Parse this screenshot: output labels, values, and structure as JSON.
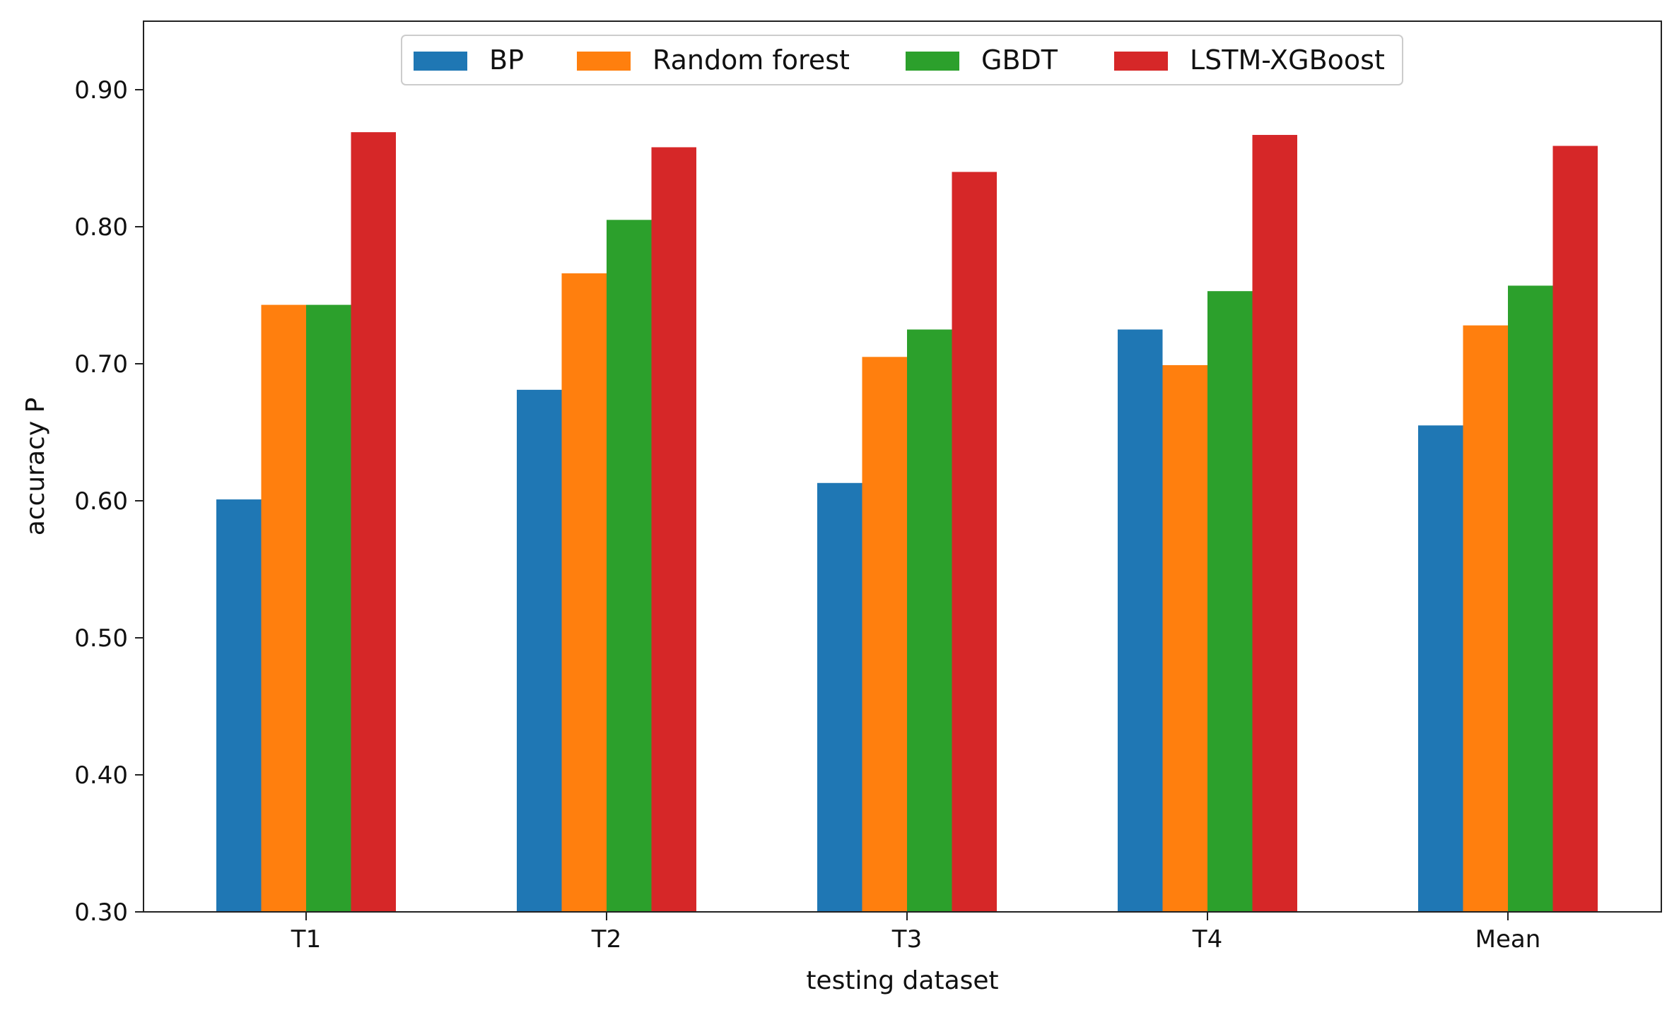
{
  "chart_data": {
    "type": "bar",
    "title": "",
    "xlabel": "testing dataset",
    "ylabel": "accuracy P",
    "categories": [
      "T1",
      "T2",
      "T3",
      "T4",
      "Mean"
    ],
    "ylim": [
      0.3,
      0.95
    ],
    "yticks": [
      {
        "value": 0.3,
        "label": "0.30"
      },
      {
        "value": 0.4,
        "label": "0.40"
      },
      {
        "value": 0.5,
        "label": "0.50"
      },
      {
        "value": 0.6,
        "label": "0.60"
      },
      {
        "value": 0.7,
        "label": "0.70"
      },
      {
        "value": 0.8,
        "label": "0.80"
      },
      {
        "value": 0.9,
        "label": "0.90"
      }
    ],
    "grid": false,
    "legend_position": "top-center",
    "series": [
      {
        "name": "BP",
        "color": "#1f77b4",
        "values": [
          0.601,
          0.681,
          0.613,
          0.725,
          0.655
        ]
      },
      {
        "name": "Random forest",
        "color": "#ff7f0e",
        "values": [
          0.743,
          0.766,
          0.705,
          0.699,
          0.728
        ]
      },
      {
        "name": "GBDT",
        "color": "#2ca02c",
        "values": [
          0.743,
          0.805,
          0.725,
          0.753,
          0.757
        ]
      },
      {
        "name": "LSTM-XGBoost",
        "color": "#d62728",
        "values": [
          0.869,
          0.858,
          0.84,
          0.867,
          0.859
        ]
      }
    ]
  }
}
